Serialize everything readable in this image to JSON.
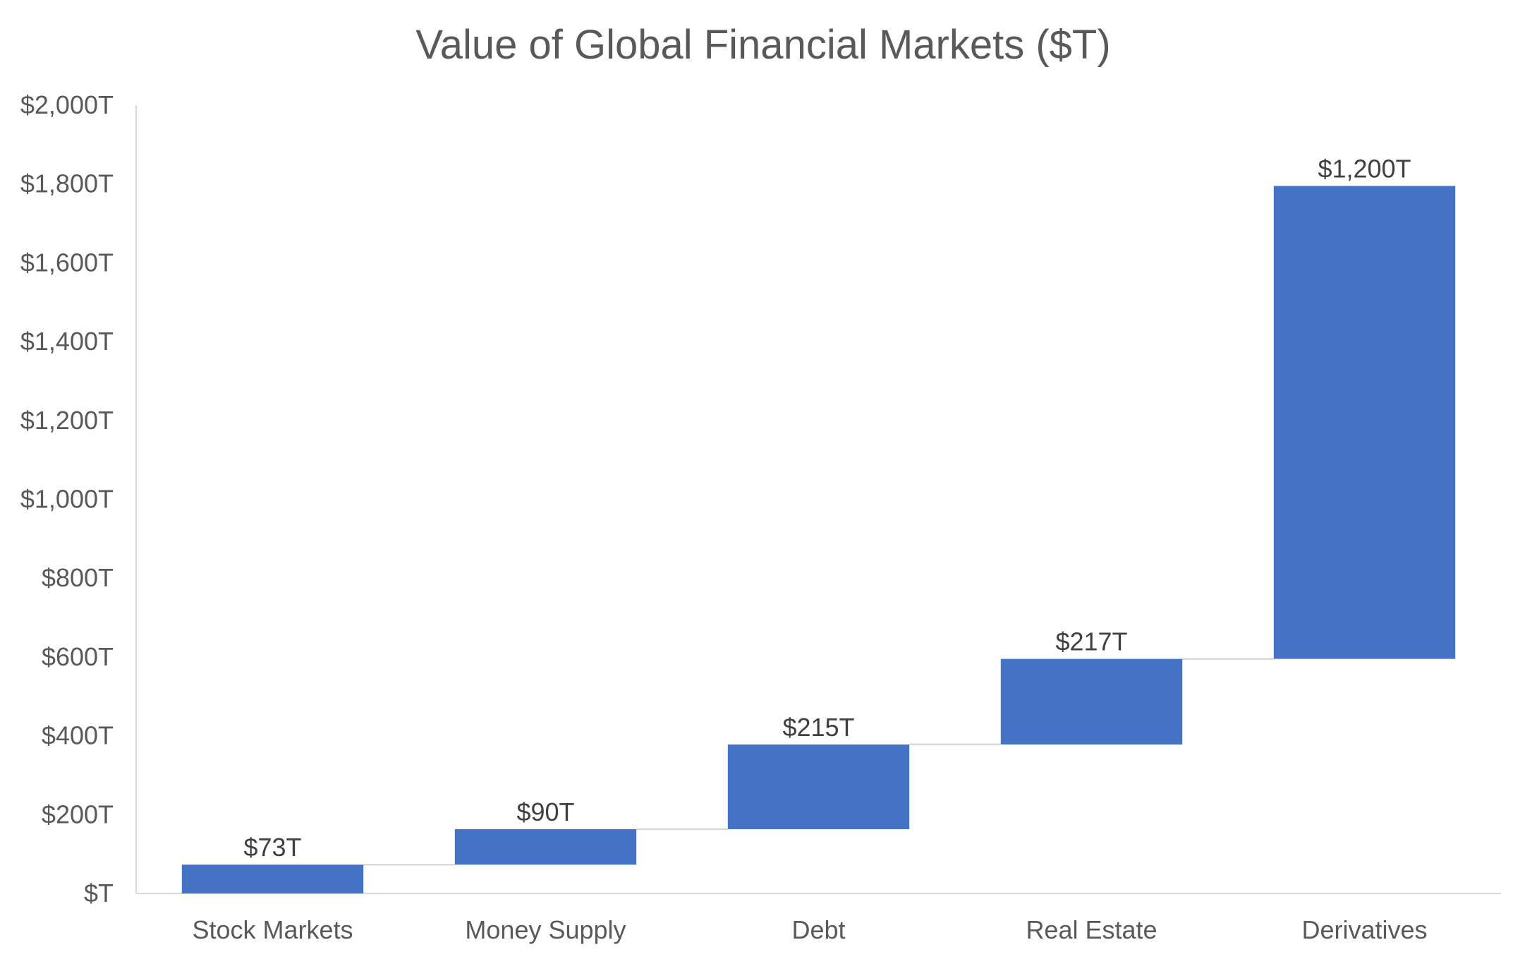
{
  "chart_data": {
    "type": "bar",
    "subtype": "waterfall",
    "title": "Value of Global Financial Markets ($T)",
    "xlabel": "",
    "ylabel": "",
    "categories": [
      "Stock Markets",
      "Money Supply",
      "Debt",
      "Real Estate",
      "Derivatives"
    ],
    "values": [
      73,
      90,
      215,
      217,
      1200
    ],
    "data_labels": [
      "$73T",
      "$90T",
      "$215T",
      "$217T",
      "$1,200T"
    ],
    "ylim": [
      0,
      2000
    ],
    "y_ticks": [
      0,
      200,
      400,
      600,
      800,
      1000,
      1200,
      1400,
      1600,
      1800,
      2000
    ],
    "y_tick_labels": [
      "$T",
      "$200T",
      "$400T",
      "$600T",
      "$800T",
      "$1,000T",
      "$1,200T",
      "$1,400T",
      "$1,600T",
      "$1,800T",
      "$2,000T"
    ],
    "grid": false,
    "legend": "none",
    "colors": {
      "bar": "#4472C4",
      "connector": "#D9D9D9",
      "axis": "#D9D9D9",
      "text": "#595959"
    }
  }
}
